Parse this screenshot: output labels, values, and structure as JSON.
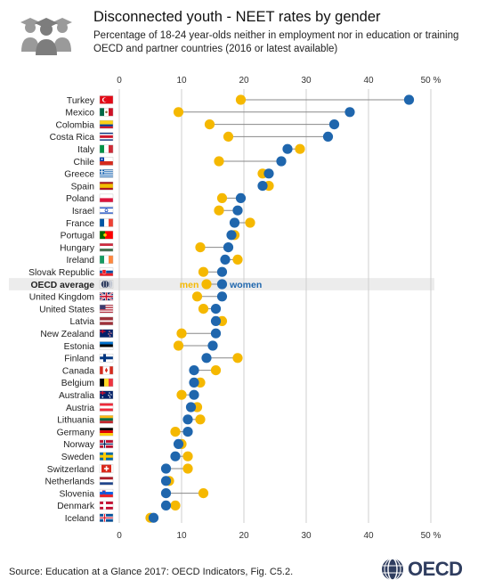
{
  "header": {
    "icon": "graduates-group-icon",
    "title": "Disconnected youth - NEET rates by gender",
    "subtitle_line1": "Percentage of 18-24 year-olds neither in employment nor in education or training",
    "subtitle_line2": "OECD and partner countries (2016 or latest available)"
  },
  "footer": {
    "source": "Source: Education at a Glance 2017: OECD Indicators, Fig. C5.2.",
    "logo_text": "OECD"
  },
  "colors": {
    "men": "#f5b800",
    "women": "#1f66ad",
    "connector": "#888888",
    "grid": "#cfcfcf",
    "highlight_row": "#ececec"
  },
  "chart_data": {
    "type": "scatter",
    "orientation": "horizontal-dot-plot",
    "axis_ticks": [
      "0",
      "10",
      "20",
      "30",
      "40",
      "50 %"
    ],
    "xlim": [
      0,
      50
    ],
    "grid": true,
    "annotations": {
      "men_label": "men",
      "women_label": "women",
      "annotated_row": "OECD average"
    },
    "series": [
      {
        "name": "men",
        "color": "#f5b800"
      },
      {
        "name": "women",
        "color": "#1f66ad"
      }
    ],
    "rows": [
      {
        "country": "Turkey",
        "flag": "turkey-flag-icon",
        "men": 19.5,
        "women": 46.5
      },
      {
        "country": "Mexico",
        "flag": "mexico-flag-icon",
        "men": 9.5,
        "women": 37.0
      },
      {
        "country": "Colombia",
        "flag": "colombia-flag-icon",
        "men": 14.5,
        "women": 34.5
      },
      {
        "country": "Costa Rica",
        "flag": "costa-rica-flag-icon",
        "men": 17.5,
        "women": 33.5
      },
      {
        "country": "Italy",
        "flag": "italy-flag-icon",
        "men": 29.0,
        "women": 27.0
      },
      {
        "country": "Chile",
        "flag": "chile-flag-icon",
        "men": 16.0,
        "women": 26.0
      },
      {
        "country": "Greece",
        "flag": "greece-flag-icon",
        "men": 23.0,
        "women": 24.0
      },
      {
        "country": "Spain",
        "flag": "spain-flag-icon",
        "men": 24.0,
        "women": 23.0
      },
      {
        "country": "Poland",
        "flag": "poland-flag-icon",
        "men": 16.5,
        "women": 19.5
      },
      {
        "country": "Israel",
        "flag": "israel-flag-icon",
        "men": 16.0,
        "women": 19.0
      },
      {
        "country": "France",
        "flag": "france-flag-icon",
        "men": 21.0,
        "women": 18.5
      },
      {
        "country": "Portugal",
        "flag": "portugal-flag-icon",
        "men": 18.5,
        "women": 18.0
      },
      {
        "country": "Hungary",
        "flag": "hungary-flag-icon",
        "men": 13.0,
        "women": 17.5
      },
      {
        "country": "Ireland",
        "flag": "ireland-flag-icon",
        "men": 19.0,
        "women": 17.0
      },
      {
        "country": "Slovak Republic",
        "flag": "slovak-republic-flag-icon",
        "men": 13.5,
        "women": 16.5
      },
      {
        "country": "OECD average",
        "flag": "oecd-logo-icon",
        "men": 14.0,
        "women": 16.5,
        "highlight": true
      },
      {
        "country": "United Kingdom",
        "flag": "united-kingdom-flag-icon",
        "men": 12.5,
        "women": 16.5
      },
      {
        "country": "United States",
        "flag": "united-states-flag-icon",
        "men": 13.5,
        "women": 15.5
      },
      {
        "country": "Latvia",
        "flag": "latvia-flag-icon",
        "men": 16.5,
        "women": 15.5
      },
      {
        "country": "New Zealand",
        "flag": "new-zealand-flag-icon",
        "men": 10.0,
        "women": 15.5
      },
      {
        "country": "Estonia",
        "flag": "estonia-flag-icon",
        "men": 9.5,
        "women": 15.0
      },
      {
        "country": "Finland",
        "flag": "finland-flag-icon",
        "men": 19.0,
        "women": 14.0
      },
      {
        "country": "Canada",
        "flag": "canada-flag-icon",
        "men": 15.5,
        "women": 12.0
      },
      {
        "country": "Belgium",
        "flag": "belgium-flag-icon",
        "men": 13.0,
        "women": 12.0
      },
      {
        "country": "Australia",
        "flag": "australia-flag-icon",
        "men": 10.0,
        "women": 12.0
      },
      {
        "country": "Austria",
        "flag": "austria-flag-icon",
        "men": 12.5,
        "women": 11.5
      },
      {
        "country": "Lithuania",
        "flag": "lithuania-flag-icon",
        "men": 13.0,
        "women": 11.0
      },
      {
        "country": "Germany",
        "flag": "germany-flag-icon",
        "men": 9.0,
        "women": 11.0
      },
      {
        "country": "Norway",
        "flag": "norway-flag-icon",
        "men": 10.0,
        "women": 9.5
      },
      {
        "country": "Sweden",
        "flag": "sweden-flag-icon",
        "men": 11.0,
        "women": 9.0
      },
      {
        "country": "Switzerland",
        "flag": "switzerland-flag-icon",
        "men": 11.0,
        "women": 7.5
      },
      {
        "country": "Netherlands",
        "flag": "netherlands-flag-icon",
        "men": 8.0,
        "women": 7.5
      },
      {
        "country": "Slovenia",
        "flag": "slovenia-flag-icon",
        "men": 13.5,
        "women": 7.5
      },
      {
        "country": "Denmark",
        "flag": "denmark-flag-icon",
        "men": 9.0,
        "women": 7.5
      },
      {
        "country": "Iceland",
        "flag": "iceland-flag-icon",
        "men": 5.0,
        "women": 5.5
      }
    ]
  }
}
